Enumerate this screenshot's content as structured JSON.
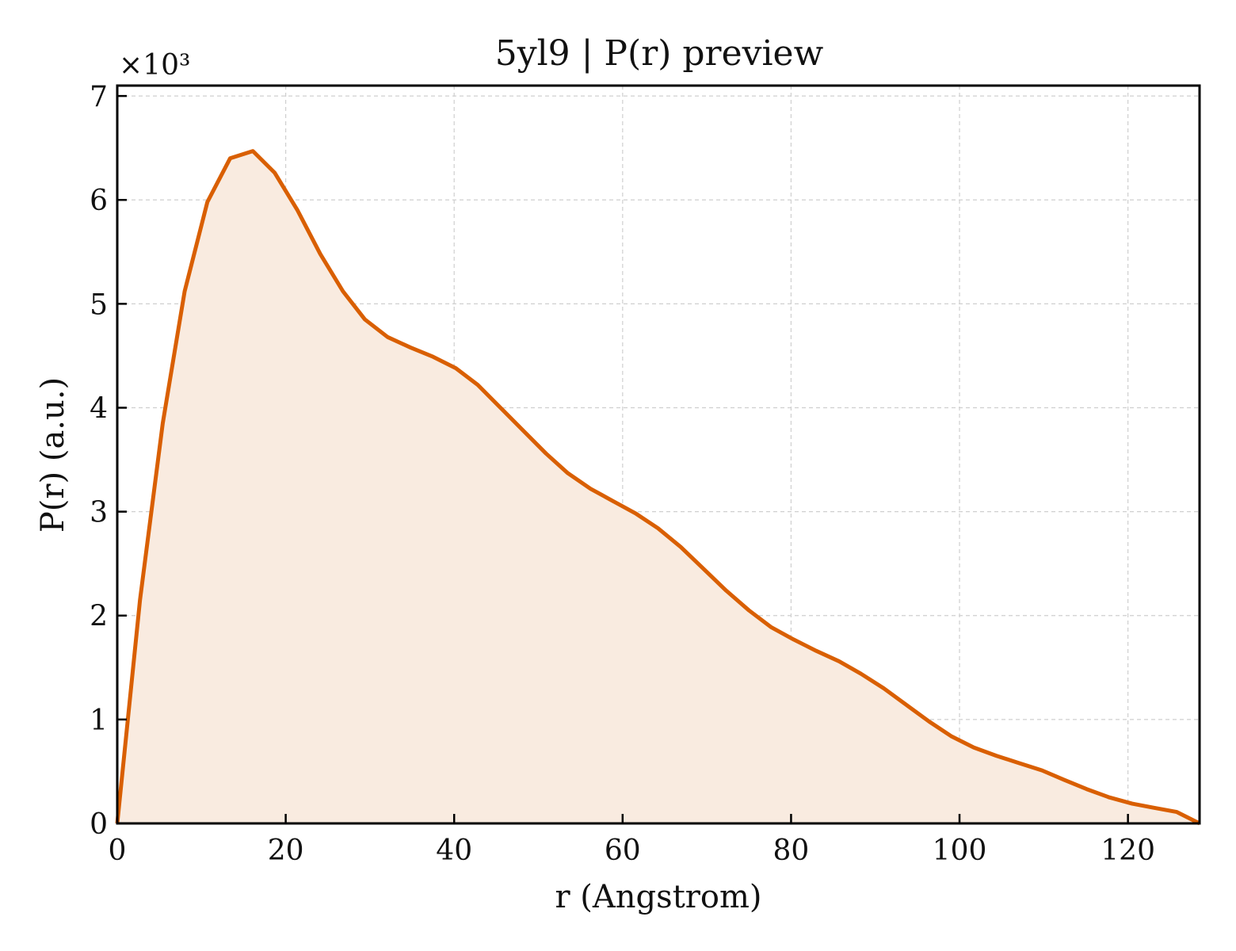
{
  "chart_data": {
    "type": "area",
    "title": "5yl9 | P(r) preview",
    "xlabel": "r (Angstrom)",
    "ylabel": "P(r) (a.u.)",
    "y_multiplier_label": "×10³",
    "xlim": [
      0,
      128.5
    ],
    "ylim": [
      0,
      7.1
    ],
    "x_ticks": [
      0,
      20,
      40,
      60,
      80,
      100,
      120
    ],
    "y_ticks": [
      0,
      1,
      2,
      3,
      4,
      5,
      6,
      7
    ],
    "grid": true,
    "colors": {
      "line": "#d95f02",
      "fill": "#f9ebe0"
    },
    "series": [
      {
        "x": [
          0,
          2.7,
          5.4,
          8.0,
          10.7,
          13.4,
          16.1,
          18.7,
          21.4,
          24.1,
          26.8,
          29.4,
          32.1,
          34.8,
          37.5,
          40.2,
          42.8,
          45.5,
          48.2,
          50.9,
          53.5,
          56.2,
          58.9,
          61.6,
          64.2,
          66.9,
          69.6,
          72.3,
          75.0,
          77.6,
          80.3,
          83.0,
          85.7,
          88.3,
          91.0,
          93.7,
          96.4,
          99.0,
          101.7,
          104.4,
          107.1,
          109.8,
          112.4,
          115.1,
          117.8,
          120.5,
          123.1,
          125.8,
          128.5
        ],
        "y": [
          0,
          2.15,
          3.85,
          5.12,
          5.98,
          6.4,
          6.47,
          6.26,
          5.9,
          5.48,
          5.12,
          4.85,
          4.68,
          4.58,
          4.49,
          4.38,
          4.22,
          4.0,
          3.78,
          3.56,
          3.37,
          3.22,
          3.1,
          2.98,
          2.84,
          2.66,
          2.45,
          2.24,
          2.05,
          1.89,
          1.77,
          1.66,
          1.56,
          1.44,
          1.3,
          1.14,
          0.98,
          0.84,
          0.73,
          0.65,
          0.58,
          0.51,
          0.42,
          0.33,
          0.25,
          0.19,
          0.15,
          0.11,
          0.0
        ]
      }
    ]
  }
}
